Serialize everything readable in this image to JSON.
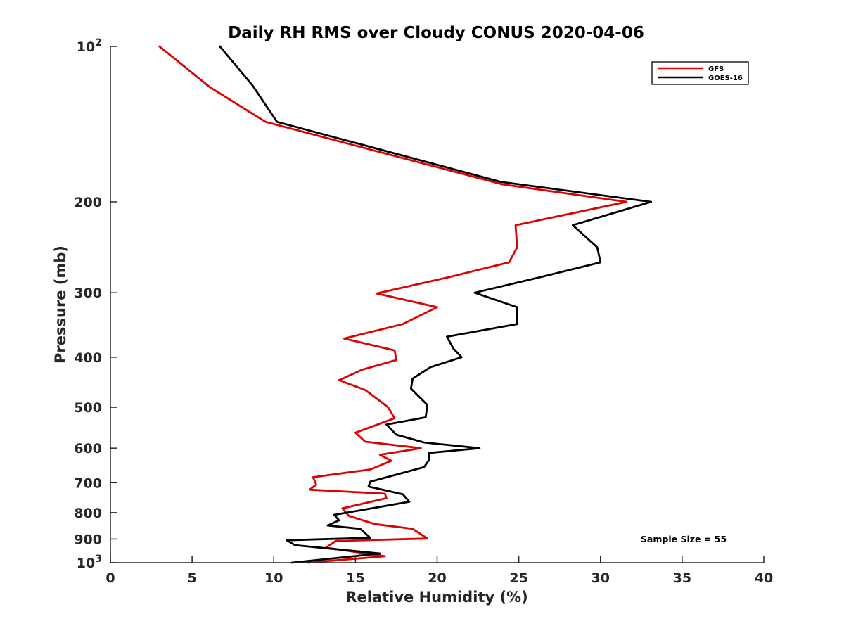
{
  "chart_data": {
    "type": "line",
    "title": "Daily RH RMS over Cloudy CONUS 2020-04-06",
    "xlabel": "Relative Humidity (%)",
    "ylabel": "Pressure (mb)",
    "xlim": [
      0,
      40
    ],
    "ylim": [
      100,
      1000
    ],
    "y_scale": "log",
    "y_reversed": true,
    "x_ticks": [
      {
        "value": 0,
        "label": "0"
      },
      {
        "value": 5,
        "label": "5"
      },
      {
        "value": 10,
        "label": "10"
      },
      {
        "value": 15,
        "label": "15"
      },
      {
        "value": 20,
        "label": "20"
      },
      {
        "value": 25,
        "label": "25"
      },
      {
        "value": 30,
        "label": "30"
      },
      {
        "value": 35,
        "label": "35"
      },
      {
        "value": 40,
        "label": "40"
      }
    ],
    "y_ticks": [
      {
        "value": 100,
        "label": "10",
        "sup": "2"
      },
      {
        "value": 200,
        "label": "200"
      },
      {
        "value": 300,
        "label": "300"
      },
      {
        "value": 400,
        "label": "400"
      },
      {
        "value": 500,
        "label": "500"
      },
      {
        "value": 600,
        "label": "600"
      },
      {
        "value": 700,
        "label": "700"
      },
      {
        "value": 800,
        "label": "800"
      },
      {
        "value": 900,
        "label": "900"
      },
      {
        "value": 1000,
        "label": "10",
        "sup": "3"
      }
    ],
    "grid": false,
    "legend_position": "top-right",
    "annotation": "Sample Size = 55",
    "series": [
      {
        "name": "GFS",
        "color": "#e00000",
        "points": [
          {
            "x": 3.0,
            "y": 100
          },
          {
            "x": 6.1,
            "y": 120
          },
          {
            "x": 9.5,
            "y": 140
          },
          {
            "x": 24.0,
            "y": 185
          },
          {
            "x": 31.6,
            "y": 200
          },
          {
            "x": 24.8,
            "y": 222
          },
          {
            "x": 24.9,
            "y": 245
          },
          {
            "x": 24.4,
            "y": 262
          },
          {
            "x": 20.7,
            "y": 280
          },
          {
            "x": 16.3,
            "y": 301
          },
          {
            "x": 20.0,
            "y": 320
          },
          {
            "x": 17.9,
            "y": 345
          },
          {
            "x": 14.3,
            "y": 368
          },
          {
            "x": 17.4,
            "y": 388
          },
          {
            "x": 17.5,
            "y": 405
          },
          {
            "x": 15.4,
            "y": 423
          },
          {
            "x": 14.0,
            "y": 443
          },
          {
            "x": 15.6,
            "y": 463
          },
          {
            "x": 17.0,
            "y": 500
          },
          {
            "x": 17.4,
            "y": 525
          },
          {
            "x": 15.0,
            "y": 560
          },
          {
            "x": 15.6,
            "y": 583
          },
          {
            "x": 19.0,
            "y": 600
          },
          {
            "x": 16.5,
            "y": 618
          },
          {
            "x": 17.2,
            "y": 635
          },
          {
            "x": 15.9,
            "y": 660
          },
          {
            "x": 12.4,
            "y": 683
          },
          {
            "x": 12.6,
            "y": 706
          },
          {
            "x": 12.2,
            "y": 722
          },
          {
            "x": 16.8,
            "y": 735
          },
          {
            "x": 16.9,
            "y": 750
          },
          {
            "x": 14.2,
            "y": 785
          },
          {
            "x": 14.6,
            "y": 812
          },
          {
            "x": 16.2,
            "y": 842
          },
          {
            "x": 18.5,
            "y": 860
          },
          {
            "x": 19.4,
            "y": 898
          },
          {
            "x": 13.8,
            "y": 908
          },
          {
            "x": 13.2,
            "y": 935
          },
          {
            "x": 16.8,
            "y": 972
          },
          {
            "x": 12.1,
            "y": 1000
          }
        ]
      },
      {
        "name": "GOES-16",
        "color": "#000000",
        "points": [
          {
            "x": 6.7,
            "y": 100
          },
          {
            "x": 8.7,
            "y": 119
          },
          {
            "x": 10.2,
            "y": 140
          },
          {
            "x": 23.9,
            "y": 183
          },
          {
            "x": 33.1,
            "y": 200
          },
          {
            "x": 28.3,
            "y": 222
          },
          {
            "x": 29.8,
            "y": 245
          },
          {
            "x": 30.0,
            "y": 262
          },
          {
            "x": 26.3,
            "y": 280
          },
          {
            "x": 22.3,
            "y": 300
          },
          {
            "x": 24.9,
            "y": 320
          },
          {
            "x": 24.9,
            "y": 345
          },
          {
            "x": 20.6,
            "y": 365
          },
          {
            "x": 21.0,
            "y": 385
          },
          {
            "x": 21.5,
            "y": 400
          },
          {
            "x": 19.6,
            "y": 418
          },
          {
            "x": 18.5,
            "y": 440
          },
          {
            "x": 18.4,
            "y": 460
          },
          {
            "x": 19.4,
            "y": 495
          },
          {
            "x": 19.3,
            "y": 523
          },
          {
            "x": 16.9,
            "y": 540
          },
          {
            "x": 17.5,
            "y": 565
          },
          {
            "x": 19.2,
            "y": 585
          },
          {
            "x": 22.6,
            "y": 600
          },
          {
            "x": 19.5,
            "y": 613
          },
          {
            "x": 19.5,
            "y": 633
          },
          {
            "x": 19.2,
            "y": 653
          },
          {
            "x": 15.9,
            "y": 697
          },
          {
            "x": 15.8,
            "y": 712
          },
          {
            "x": 17.9,
            "y": 737
          },
          {
            "x": 18.3,
            "y": 762
          },
          {
            "x": 13.7,
            "y": 808
          },
          {
            "x": 14.0,
            "y": 828
          },
          {
            "x": 13.3,
            "y": 847
          },
          {
            "x": 15.3,
            "y": 860
          },
          {
            "x": 15.9,
            "y": 895
          },
          {
            "x": 10.8,
            "y": 905
          },
          {
            "x": 11.3,
            "y": 925
          },
          {
            "x": 16.5,
            "y": 960
          },
          {
            "x": 11.1,
            "y": 1000
          }
        ]
      }
    ]
  }
}
